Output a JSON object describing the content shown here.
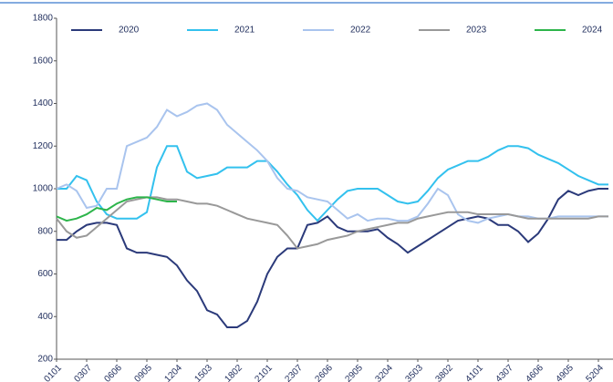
{
  "chart_data": {
    "type": "line",
    "categories": [
      "0101",
      null,
      null,
      "0307",
      null,
      null,
      "0606",
      null,
      null,
      "0905",
      null,
      null,
      "1204",
      null,
      null,
      "1503",
      null,
      null,
      "1802",
      null,
      null,
      "2101",
      null,
      null,
      "2307",
      null,
      null,
      "2606",
      null,
      null,
      "2905",
      null,
      null,
      "3204",
      null,
      null,
      "3503",
      null,
      null,
      "3802",
      null,
      null,
      "4101",
      null,
      null,
      "4307",
      null,
      null,
      "4606",
      null,
      null,
      "4905",
      null,
      null,
      "5204",
      null
    ],
    "series": [
      {
        "name": "2020",
        "color": "#2b3a7a",
        "values": [
          760,
          760,
          800,
          830,
          840,
          840,
          830,
          720,
          700,
          700,
          690,
          680,
          640,
          570,
          520,
          430,
          410,
          350,
          350,
          380,
          470,
          600,
          680,
          720,
          720,
          830,
          840,
          870,
          820,
          800,
          800,
          800,
          810,
          770,
          740,
          700,
          730,
          760,
          790,
          820,
          850,
          860,
          870,
          860,
          830,
          830,
          800,
          750,
          790,
          860,
          950,
          990,
          970,
          990,
          1000,
          1000
        ]
      },
      {
        "name": "2021",
        "color": "#33c1ee",
        "values": [
          1000,
          1000,
          1060,
          1040,
          940,
          880,
          860,
          860,
          860,
          890,
          1100,
          1200,
          1200,
          1080,
          1050,
          1060,
          1070,
          1100,
          1100,
          1100,
          1130,
          1130,
          1080,
          1020,
          970,
          900,
          850,
          900,
          950,
          990,
          1000,
          1000,
          1000,
          970,
          940,
          930,
          940,
          990,
          1050,
          1090,
          1110,
          1130,
          1130,
          1150,
          1180,
          1200,
          1200,
          1190,
          1160,
          1140,
          1120,
          1090,
          1060,
          1040,
          1020,
          1020
        ]
      },
      {
        "name": "2022",
        "color": "#a9c4ee",
        "values": [
          1000,
          1020,
          990,
          910,
          920,
          1000,
          1000,
          1200,
          1220,
          1240,
          1290,
          1370,
          1340,
          1360,
          1390,
          1400,
          1370,
          1300,
          1260,
          1220,
          1180,
          1130,
          1050,
          1000,
          990,
          960,
          950,
          940,
          900,
          860,
          880,
          850,
          860,
          860,
          850,
          850,
          870,
          930,
          1000,
          970,
          880,
          850,
          840,
          860,
          870,
          880,
          870,
          870,
          860,
          860,
          870,
          870,
          870,
          870,
          870,
          870
        ]
      },
      {
        "name": "2023",
        "color": "#999999",
        "values": [
          860,
          800,
          770,
          780,
          820,
          860,
          900,
          940,
          950,
          960,
          960,
          950,
          950,
          940,
          930,
          930,
          920,
          900,
          880,
          860,
          850,
          840,
          830,
          780,
          720,
          730,
          740,
          760,
          770,
          780,
          800,
          810,
          820,
          830,
          840,
          840,
          860,
          870,
          880,
          890,
          890,
          890,
          880,
          880,
          880,
          880,
          870,
          860,
          860,
          860,
          860,
          860,
          860,
          860,
          870,
          870
        ]
      },
      {
        "name": "2024",
        "color": "#2db54b",
        "values": [
          870,
          850,
          860,
          880,
          910,
          900,
          930,
          950,
          960,
          960,
          950,
          940,
          940,
          null,
          null,
          null,
          null,
          null,
          null,
          null,
          null,
          null,
          null,
          null,
          null,
          null,
          null,
          null,
          null,
          null,
          null,
          null,
          null,
          null,
          null,
          null,
          null,
          null,
          null,
          null,
          null,
          null,
          null,
          null,
          null,
          null,
          null,
          null,
          null,
          null,
          null,
          null,
          null,
          null,
          null,
          null
        ]
      }
    ],
    "ylim": [
      200,
      1800
    ],
    "yticks": [
      200,
      400,
      600,
      800,
      1000,
      1200,
      1400,
      1600,
      1800
    ]
  }
}
